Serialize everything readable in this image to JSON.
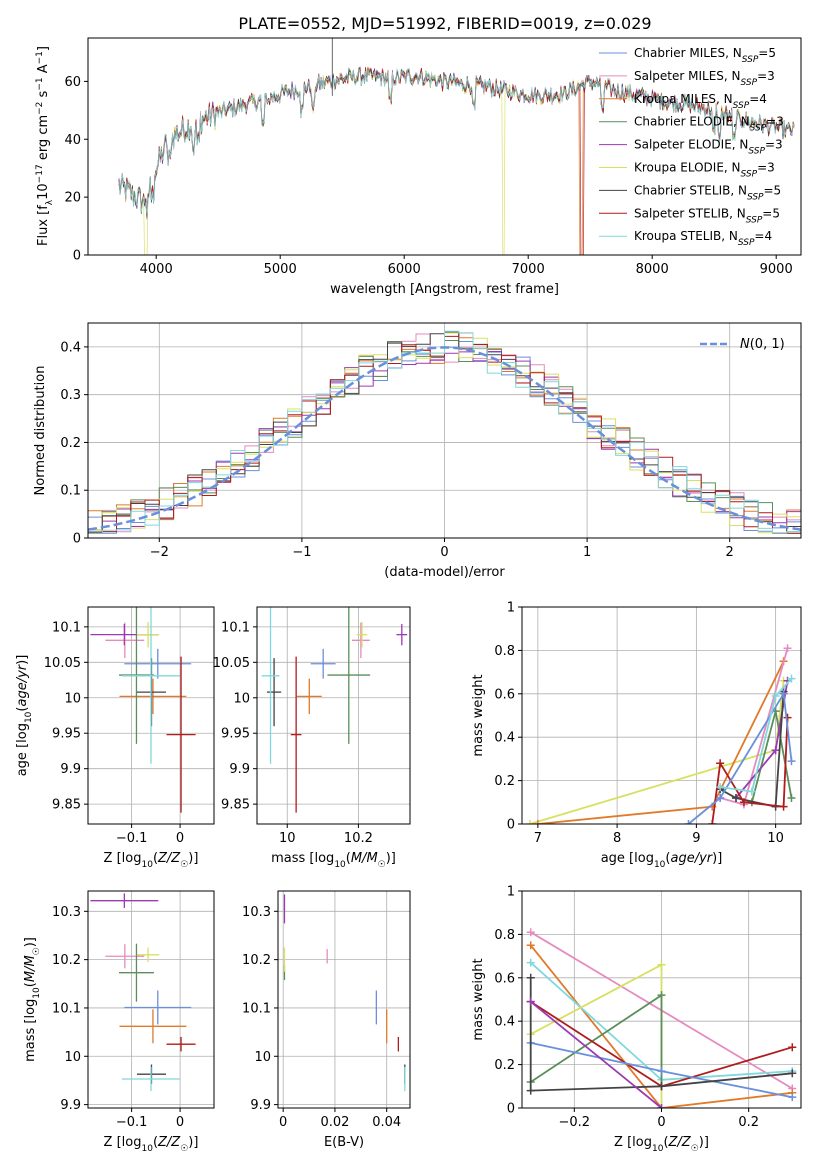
{
  "figure": {
    "title": "PLATE=0552, MJD=51992, FIBERID=0019, z=0.029",
    "series_colors": {
      "Chabrier MILES": "#6a8fdc",
      "Salpeter MILES": "#e68ac0",
      "Kroupa MILES": "#e07a2a",
      "Chabrier ELODIE": "#5a8f5a",
      "Salpeter ELODIE": "#9a3ab4",
      "Kroupa ELODIE": "#d8e060",
      "Chabrier STELIB": "#444444",
      "Salpeter STELIB": "#b01c1c",
      "Kroupa STELIB": "#80d8dc"
    }
  },
  "chart_data": [
    {
      "id": "spectrum",
      "type": "line",
      "title": "PLATE=0552, MJD=51992, FIBERID=0019, z=0.029",
      "xlabel": "wavelength [Angstrom, rest frame]",
      "ylabel": "Flux [f_λ10^-17 erg cm^-2 s^-1 A^-1]",
      "xlim": [
        3450,
        9200
      ],
      "ylim": [
        0,
        75
      ],
      "xticks": [
        4000,
        5000,
        6000,
        7000,
        8000,
        9000
      ],
      "yticks": [
        0,
        20,
        40,
        60
      ],
      "grid": false,
      "legend_position": "top-right",
      "legend": [
        {
          "name": "Chabrier MILES",
          "nssp": "5"
        },
        {
          "name": "Salpeter MILES",
          "nssp": "3"
        },
        {
          "name": "Kroupa MILES",
          "nssp": "4"
        },
        {
          "name": "Chabrier ELODIE",
          "nssp": "3"
        },
        {
          "name": "Salpeter ELODIE",
          "nssp": "3"
        },
        {
          "name": "Kroupa ELODIE",
          "nssp": "3"
        },
        {
          "name": "Chabrier STELIB",
          "nssp": "5"
        },
        {
          "name": "Salpeter STELIB",
          "nssp": "5"
        },
        {
          "name": "Kroupa STELIB",
          "nssp": "4"
        }
      ],
      "continuum": [
        [
          3700,
          24
        ],
        [
          3800,
          21
        ],
        [
          3900,
          18
        ],
        [
          3950,
          27
        ],
        [
          4000,
          30
        ],
        [
          4100,
          40
        ],
        [
          4300,
          46
        ],
        [
          4500,
          49
        ],
        [
          4700,
          52
        ],
        [
          4900,
          54
        ],
        [
          5100,
          57
        ],
        [
          5300,
          59
        ],
        [
          5500,
          61
        ],
        [
          5700,
          62
        ],
        [
          5900,
          61
        ],
        [
          6100,
          62
        ],
        [
          6300,
          60
        ],
        [
          6500,
          59
        ],
        [
          6700,
          58
        ],
        [
          6900,
          56
        ],
        [
          7100,
          55
        ],
        [
          7300,
          56
        ],
        [
          7500,
          60
        ],
        [
          7700,
          57
        ],
        [
          7900,
          55
        ],
        [
          8100,
          53
        ],
        [
          8300,
          52
        ],
        [
          8500,
          50
        ],
        [
          8700,
          47
        ],
        [
          8900,
          45
        ],
        [
          9000,
          44
        ],
        [
          9100,
          43
        ]
      ],
      "dropouts": [
        {
          "series": "Kroupa ELODIE",
          "start": 3910,
          "end": 3920
        },
        {
          "series": "Kroupa ELODIE",
          "start": 6800,
          "end": 6800
        },
        {
          "series": "Kroupa MILES",
          "start": 7420,
          "end": 7430
        },
        {
          "series": "Salpeter STELIB",
          "start": 7430,
          "end": 7440
        }
      ],
      "spike": {
        "x": 5420,
        "y": 75
      }
    },
    {
      "id": "residuals",
      "type": "step",
      "xlabel": "(data-model)/error",
      "ylabel": "Normed distribution",
      "xlim": [
        -2.5,
        2.5
      ],
      "ylim": [
        0,
        0.45
      ],
      "xticks": [
        -2,
        -1,
        0,
        1,
        2
      ],
      "yticks": [
        0.0,
        0.1,
        0.2,
        0.3,
        0.4
      ],
      "grid": true,
      "legend_position": "top-right",
      "reference": {
        "label": "N(0,1)",
        "mean": 0,
        "sigma": 1
      }
    },
    {
      "id": "age-vs-z",
      "type": "errorbar",
      "xlabel": "Z [log10(Z/Z☉)]",
      "ylabel": "age [log10(age/yr)]",
      "xlim": [
        -0.19,
        0.07
      ],
      "ylim": [
        9.822,
        10.128
      ],
      "xticks": [
        -0.1,
        0.0
      ],
      "yticks": [
        9.85,
        9.9,
        9.95,
        10.0,
        10.05,
        10.1
      ],
      "grid": true,
      "points": [
        {
          "series": "Chabrier MILES",
          "x": -0.046,
          "xerr": 0.069,
          "y": 10.048,
          "yerr": 0.021
        },
        {
          "series": "Salpeter MILES",
          "x": -0.114,
          "xerr": 0.04,
          "y": 10.081,
          "yerr": 0.025
        },
        {
          "series": "Kroupa MILES",
          "x": -0.056,
          "xerr": 0.069,
          "y": 10.002,
          "yerr": 0.025
        },
        {
          "series": "Chabrier ELODIE",
          "x": -0.09,
          "xerr": 0.036,
          "y": 10.032,
          "yerr": 0.097
        },
        {
          "series": "Salpeter ELODIE",
          "x": -0.115,
          "xerr": 0.07,
          "y": 10.089,
          "yerr": 0.015
        },
        {
          "series": "Kroupa ELODIE",
          "x": -0.066,
          "xerr": 0.023,
          "y": 10.089,
          "yerr": 0.018
        },
        {
          "series": "Chabrier STELIB",
          "x": -0.059,
          "xerr": 0.03,
          "y": 10.008,
          "yerr": 0.048
        },
        {
          "series": "Salpeter STELIB",
          "x": 0.002,
          "xerr": 0.03,
          "y": 9.948,
          "yerr": 0.11
        },
        {
          "series": "Kroupa STELIB",
          "x": -0.06,
          "xerr": 0.06,
          "y": 10.031,
          "yerr": 0.124
        }
      ]
    },
    {
      "id": "age-vs-mass",
      "type": "errorbar",
      "xlabel": "mass [log10(M/M☉)]",
      "ylabel": "",
      "xlim": [
        9.915,
        10.345
      ],
      "ylim": [
        9.822,
        10.128
      ],
      "xticks": [
        10.0,
        10.2
      ],
      "yticks": [
        9.85,
        9.9,
        9.95,
        10.0,
        10.05,
        10.1
      ],
      "grid": true,
      "points": [
        {
          "series": "Chabrier MILES",
          "x": 10.101,
          "xerr": 0.035,
          "y": 10.048,
          "yerr": 0.021
        },
        {
          "series": "Salpeter MILES",
          "x": 10.207,
          "xerr": 0.025,
          "y": 10.081,
          "yerr": 0.025
        },
        {
          "series": "Kroupa MILES",
          "x": 10.062,
          "xerr": 0.035,
          "y": 10.002,
          "yerr": 0.025
        },
        {
          "series": "Chabrier ELODIE",
          "x": 10.173,
          "xerr": 0.06,
          "y": 10.032,
          "yerr": 0.097
        },
        {
          "series": "Salpeter ELODIE",
          "x": 10.322,
          "xerr": 0.015,
          "y": 10.089,
          "yerr": 0.015
        },
        {
          "series": "Kroupa ELODIE",
          "x": 10.21,
          "xerr": 0.015,
          "y": 10.089,
          "yerr": 0.018
        },
        {
          "series": "Chabrier STELIB",
          "x": 9.963,
          "xerr": 0.02,
          "y": 10.008,
          "yerr": 0.048
        },
        {
          "series": "Salpeter STELIB",
          "x": 10.025,
          "xerr": 0.015,
          "y": 9.948,
          "yerr": 0.11
        },
        {
          "series": "Kroupa STELIB",
          "x": 9.953,
          "xerr": 0.025,
          "y": 10.031,
          "yerr": 0.124
        }
      ]
    },
    {
      "id": "weight-vs-age",
      "type": "line",
      "xlabel": "age [log10(age/yr)]",
      "ylabel": "mass weight",
      "xlim": [
        6.8,
        10.32
      ],
      "ylim": [
        0,
        1.0
      ],
      "xticks": [
        7,
        8,
        9,
        10
      ],
      "yticks": [
        0.0,
        0.2,
        0.4,
        0.6,
        0.8,
        1.0
      ],
      "grid": true,
      "series": [
        {
          "name": "Kroupa ELODIE",
          "points": [
            [
              6.9,
              0.0
            ],
            [
              10.0,
              0.34
            ],
            [
              10.1,
              0.66
            ]
          ]
        },
        {
          "name": "Kroupa MILES",
          "points": [
            [
              7.0,
              0.0
            ],
            [
              9.2,
              0.08
            ],
            [
              10.1,
              0.75
            ]
          ]
        },
        {
          "name": "Chabrier ELODIE",
          "points": [
            [
              9.7,
              0.1
            ],
            [
              10.0,
              0.52
            ],
            [
              10.2,
              0.12
            ]
          ]
        },
        {
          "name": "Salpeter MILES",
          "points": [
            [
              9.3,
              0.12
            ],
            [
              9.6,
              0.09
            ],
            [
              10.15,
              0.81
            ]
          ]
        },
        {
          "name": "Salpeter ELODIE",
          "points": [
            [
              9.5,
              0.12
            ],
            [
              10.0,
              0.34
            ],
            [
              10.15,
              0.66
            ]
          ]
        },
        {
          "name": "Chabrier STELIB",
          "points": [
            [
              9.3,
              0.16
            ],
            [
              9.5,
              0.12
            ],
            [
              10.0,
              0.08
            ],
            [
              10.1,
              0.61
            ]
          ]
        },
        {
          "name": "Salpeter STELIB",
          "points": [
            [
              9.2,
              0.0
            ],
            [
              9.3,
              0.28
            ],
            [
              9.6,
              0.1
            ],
            [
              10.1,
              0.08
            ],
            [
              10.15,
              0.49
            ]
          ]
        },
        {
          "name": "Chabrier MILES",
          "points": [
            [
              8.9,
              0.0
            ],
            [
              9.3,
              0.12
            ],
            [
              10.1,
              0.6
            ],
            [
              10.2,
              0.29
            ]
          ]
        },
        {
          "name": "Kroupa STELIB",
          "points": [
            [
              9.3,
              0.17
            ],
            [
              9.7,
              0.15
            ],
            [
              10.0,
              0.59
            ],
            [
              10.2,
              0.67
            ]
          ]
        }
      ]
    },
    {
      "id": "mass-vs-z",
      "type": "errorbar",
      "xlabel": "Z [log10(Z/Z☉)]",
      "ylabel": "mass [log10(M/M☉)]",
      "xlim": [
        -0.19,
        0.07
      ],
      "ylim": [
        9.893,
        10.342
      ],
      "xticks": [
        -0.1,
        0.0
      ],
      "yticks": [
        9.9,
        10.0,
        10.1,
        10.2,
        10.3
      ],
      "grid": true,
      "points": [
        {
          "series": "Chabrier MILES",
          "x": -0.046,
          "xerr": 0.069,
          "y": 10.101,
          "yerr": 0.035
        },
        {
          "series": "Salpeter MILES",
          "x": -0.114,
          "xerr": 0.04,
          "y": 10.207,
          "yerr": 0.025
        },
        {
          "series": "Kroupa MILES",
          "x": -0.056,
          "xerr": 0.069,
          "y": 10.062,
          "yerr": 0.035
        },
        {
          "series": "Chabrier ELODIE",
          "x": -0.09,
          "xerr": 0.036,
          "y": 10.173,
          "yerr": 0.06
        },
        {
          "series": "Salpeter ELODIE",
          "x": -0.115,
          "xerr": 0.07,
          "y": 10.322,
          "yerr": 0.015
        },
        {
          "series": "Kroupa ELODIE",
          "x": -0.066,
          "xerr": 0.023,
          "y": 10.21,
          "yerr": 0.015
        },
        {
          "series": "Chabrier STELIB",
          "x": -0.059,
          "xerr": 0.03,
          "y": 9.963,
          "yerr": 0.02
        },
        {
          "series": "Salpeter STELIB",
          "x": 0.002,
          "xerr": 0.03,
          "y": 10.025,
          "yerr": 0.015
        },
        {
          "series": "Kroupa STELIB",
          "x": -0.06,
          "xerr": 0.06,
          "y": 9.953,
          "yerr": 0.025
        }
      ]
    },
    {
      "id": "mass-vs-ebv",
      "type": "errorbar",
      "xlabel": "E(B-V)",
      "ylabel": "",
      "xlim": [
        -0.002,
        0.049
      ],
      "ylim": [
        9.893,
        10.342
      ],
      "xticks": [
        0.0,
        0.02,
        0.04
      ],
      "yticks": [
        9.9,
        10.0,
        10.1,
        10.2,
        10.3
      ],
      "grid": true,
      "points": [
        {
          "series": "Chabrier MILES",
          "x": 0.036,
          "xerr": 0,
          "y": 10.101,
          "yerr": 0.035
        },
        {
          "series": "Salpeter MILES",
          "x": 0.017,
          "xerr": 0,
          "y": 10.207,
          "yerr": 0.015
        },
        {
          "series": "Kroupa MILES",
          "x": 0.04,
          "xerr": 0,
          "y": 10.062,
          "yerr": 0.035
        },
        {
          "series": "Chabrier ELODIE",
          "x": 0.0005,
          "xerr": 0,
          "y": 10.173,
          "yerr": 0.015
        },
        {
          "series": "Salpeter ELODIE",
          "x": 0.0005,
          "xerr": 0,
          "y": 10.305,
          "yerr": 0.03
        },
        {
          "series": "Kroupa ELODIE",
          "x": 0.0005,
          "xerr": 0,
          "y": 10.2,
          "yerr": 0.025
        },
        {
          "series": "Chabrier STELIB",
          "x": 0.047,
          "xerr": 0,
          "y": 9.963,
          "yerr": 0.02
        },
        {
          "series": "Salpeter STELIB",
          "x": 0.0445,
          "xerr": 0,
          "y": 10.025,
          "yerr": 0.015
        },
        {
          "series": "Kroupa STELIB",
          "x": 0.047,
          "xerr": 0,
          "y": 9.953,
          "yerr": 0.025
        }
      ]
    },
    {
      "id": "weight-vs-z",
      "type": "line",
      "xlabel": "Z [log10(Z/Z☉)]",
      "ylabel": "mass weight",
      "xlim": [
        -0.32,
        0.32
      ],
      "ylim": [
        0,
        1.0
      ],
      "xticks": [
        -0.2,
        0.0,
        0.2
      ],
      "yticks": [
        0.0,
        0.2,
        0.4,
        0.6,
        0.8,
        1.0
      ],
      "grid": true,
      "series": [
        {
          "name": "Salpeter MILES",
          "points": [
            [
              -0.3,
              0.81
            ],
            [
              0.3,
              0.09
            ]
          ]
        },
        {
          "name": "Kroupa MILES",
          "points": [
            [
              -0.3,
              0.75
            ],
            [
              0.0,
              0.0
            ],
            [
              0.3,
              0.07
            ]
          ]
        },
        {
          "name": "Kroupa STELIB",
          "points": [
            [
              -0.3,
              0.67
            ],
            [
              0.0,
              0.13
            ],
            [
              0.3,
              0.17
            ]
          ]
        },
        {
          "name": "Kroupa ELODIE",
          "points": [
            [
              -0.3,
              0.34
            ],
            [
              0.0,
              0.66
            ],
            [
              0.0,
              0.0
            ]
          ]
        },
        {
          "name": "Chabrier ELODIE",
          "points": [
            [
              -0.3,
              0.12
            ],
            [
              0.0,
              0.52
            ],
            [
              0.0,
              0.1
            ]
          ]
        },
        {
          "name": "Salpeter STELIB",
          "points": [
            [
              -0.3,
              0.49
            ],
            [
              0.0,
              0.1
            ],
            [
              0.3,
              0.28
            ]
          ]
        },
        {
          "name": "Chabrier MILES",
          "points": [
            [
              -0.3,
              0.3
            ],
            [
              0.0,
              0.17
            ],
            [
              0.3,
              0.05
            ]
          ]
        },
        {
          "name": "Chabrier STELIB",
          "points": [
            [
              -0.3,
              0.6
            ],
            [
              -0.3,
              0.08
            ],
            [
              0.0,
              0.1
            ],
            [
              0.3,
              0.16
            ]
          ]
        },
        {
          "name": "Salpeter ELODIE",
          "points": [
            [
              -0.3,
              0.49
            ],
            [
              0.0,
              0.0
            ]
          ]
        }
      ]
    }
  ]
}
